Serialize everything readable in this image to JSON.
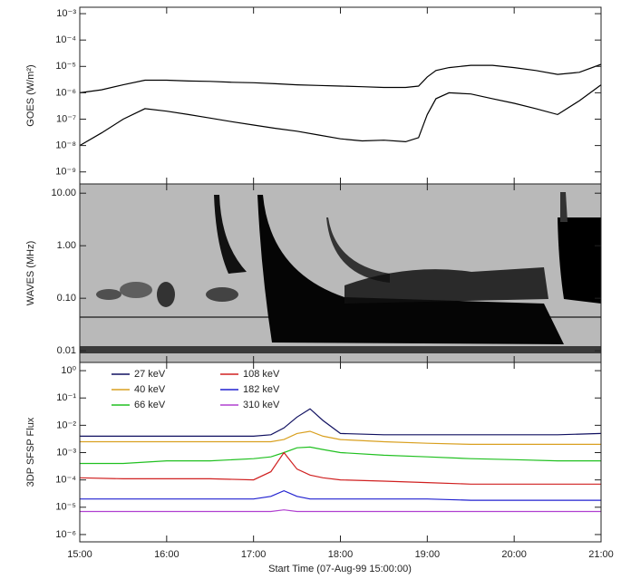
{
  "chart_data": [
    {
      "type": "line",
      "ylabel": "GOES (W/m²)",
      "ylog": true,
      "ylim": [
        3.5e-10,
        0.00175
      ],
      "yticks": [
        {
          "value": 0.001,
          "label": "10⁻³"
        },
        {
          "value": 0.0001,
          "label": "10⁻⁴"
        },
        {
          "value": 1e-05,
          "label": "10⁻⁵"
        },
        {
          "value": 1e-06,
          "label": "10⁻⁶"
        },
        {
          "value": 1e-07,
          "label": "10⁻⁷"
        },
        {
          "value": 1e-08,
          "label": "10⁻⁸"
        },
        {
          "value": 1e-09,
          "label": "10⁻⁹"
        }
      ],
      "x": [
        15,
        15.25,
        15.5,
        15.75,
        16,
        16.25,
        16.5,
        16.75,
        17,
        17.25,
        17.5,
        17.75,
        18,
        18.25,
        18.5,
        18.75,
        18.9,
        19,
        19.1,
        19.25,
        19.5,
        19.75,
        20,
        20.25,
        20.5,
        20.75,
        21
      ],
      "series": [
        {
          "color": "#000000",
          "values": [
            1e-06,
            1.3e-06,
            2e-06,
            3e-06,
            3e-06,
            2.8e-06,
            2.7e-06,
            2.5e-06,
            2.4e-06,
            2.2e-06,
            2e-06,
            1.9e-06,
            1.8e-06,
            1.7e-06,
            1.6e-06,
            1.6e-06,
            1.8e-06,
            4e-06,
            7e-06,
            9e-06,
            1.1e-05,
            1.1e-05,
            9e-06,
            7e-06,
            5e-06,
            6e-06,
            1.2e-05
          ]
        },
        {
          "color": "#000000",
          "values": [
            1e-08,
            3e-08,
            1e-07,
            2.5e-07,
            2e-07,
            1.5e-07,
            1.1e-07,
            8e-08,
            6e-08,
            4.5e-08,
            3.5e-08,
            2.5e-08,
            1.8e-08,
            1.5e-08,
            1.6e-08,
            1.4e-08,
            2e-08,
            1.5e-07,
            6e-07,
            1e-06,
            9e-07,
            6e-07,
            4e-07,
            2.5e-07,
            1.5e-07,
            5e-07,
            2e-06
          ]
        }
      ]
    },
    {
      "type": "spectrogram",
      "ylabel": "WAVES (MHz)",
      "ylog": true,
      "ylim": [
        0.006,
        15
      ],
      "yticks": [
        {
          "value": 10,
          "label": "10.00"
        },
        {
          "value": 1,
          "label": "1.00"
        },
        {
          "value": 0.1,
          "label": "0.10"
        },
        {
          "value": 0.01,
          "label": "0.01"
        }
      ]
    },
    {
      "type": "line",
      "ylabel": "3DP SFSP Flux",
      "ylog": true,
      "xlabel": "Start Time (07-Aug-99 15:00:00)",
      "xlim": [
        15,
        21
      ],
      "xticks": [
        {
          "value": 15,
          "label": "15:00"
        },
        {
          "value": 16,
          "label": "16:00"
        },
        {
          "value": 17,
          "label": "17:00"
        },
        {
          "value": 18,
          "label": "18:00"
        },
        {
          "value": 19,
          "label": "19:00"
        },
        {
          "value": 20,
          "label": "20:00"
        },
        {
          "value": 21,
          "label": "21:00"
        }
      ],
      "ylim": [
        5.4e-07,
        2
      ],
      "yticks": [
        {
          "value": 1,
          "label": "10⁰"
        },
        {
          "value": 0.1,
          "label": "10⁻¹"
        },
        {
          "value": 0.01,
          "label": "10⁻²"
        },
        {
          "value": 0.001,
          "label": "10⁻³"
        },
        {
          "value": 0.0001,
          "label": "10⁻⁴"
        },
        {
          "value": 1e-05,
          "label": "10⁻⁵"
        },
        {
          "value": 1e-06,
          "label": "10⁻⁶"
        }
      ],
      "x": [
        15,
        15.5,
        16,
        16.5,
        17,
        17.2,
        17.35,
        17.5,
        17.65,
        17.8,
        18,
        18.5,
        19,
        19.5,
        20,
        20.5,
        21
      ],
      "series": [
        {
          "name": "27 keV",
          "color": "#101060",
          "values": [
            0.004,
            0.004,
            0.004,
            0.004,
            0.004,
            0.0045,
            0.008,
            0.02,
            0.04,
            0.015,
            0.005,
            0.0045,
            0.0045,
            0.0045,
            0.0045,
            0.0045,
            0.005
          ]
        },
        {
          "name": "40 keV",
          "color": "#d9a020",
          "values": [
            0.0025,
            0.0025,
            0.0025,
            0.0025,
            0.0025,
            0.0025,
            0.003,
            0.005,
            0.006,
            0.004,
            0.003,
            0.0025,
            0.0022,
            0.002,
            0.002,
            0.002,
            0.002
          ]
        },
        {
          "name": "66 keV",
          "color": "#20c020",
          "values": [
            0.0004,
            0.0004,
            0.0005,
            0.0005,
            0.0006,
            0.0007,
            0.001,
            0.0015,
            0.0016,
            0.0013,
            0.001,
            0.0008,
            0.0007,
            0.0006,
            0.00055,
            0.0005,
            0.0005
          ]
        },
        {
          "name": "108 keV",
          "color": "#d02020",
          "values": [
            0.00012,
            0.00011,
            0.00011,
            0.00011,
            0.0001,
            0.0002,
            0.001,
            0.00025,
            0.00015,
            0.00012,
            0.0001,
            9e-05,
            8e-05,
            7e-05,
            7e-05,
            7e-05,
            7e-05
          ]
        },
        {
          "name": "182 keV",
          "color": "#2020d0",
          "values": [
            2e-05,
            2e-05,
            2e-05,
            2e-05,
            2e-05,
            2.5e-05,
            4e-05,
            2.5e-05,
            2e-05,
            2e-05,
            2e-05,
            2e-05,
            2e-05,
            1.8e-05,
            1.8e-05,
            1.8e-05,
            1.8e-05
          ]
        },
        {
          "name": "310 keV",
          "color": "#b040d0",
          "values": [
            7e-06,
            7e-06,
            7e-06,
            7e-06,
            7e-06,
            7e-06,
            8e-06,
            7e-06,
            7e-06,
            7e-06,
            7e-06,
            7e-06,
            7e-06,
            7e-06,
            7e-06,
            7e-06,
            7e-06
          ]
        }
      ]
    }
  ]
}
